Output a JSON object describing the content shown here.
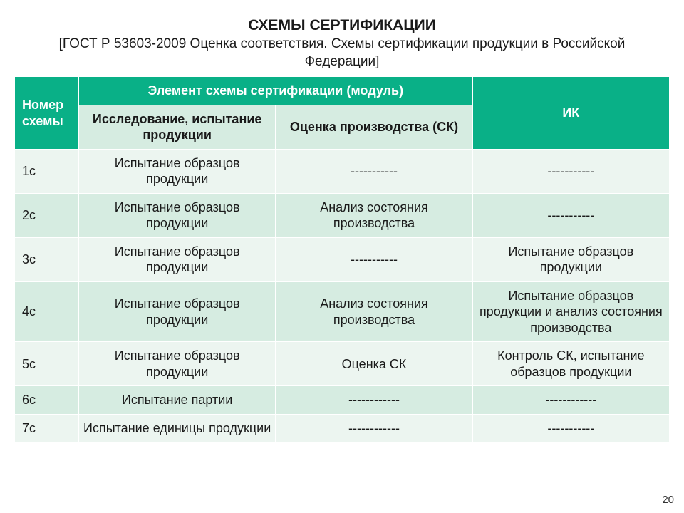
{
  "title": "СХЕМЫ СЕРТИФИКАЦИИ",
  "subtitle": "[ГОСТ Р 53603-2009 Оценка соответствия. Схемы сертификации продукции в Российской Федерации]",
  "page_number": "20",
  "colors": {
    "header_green": "#09b087",
    "header_light": "#d6ece1",
    "row_even": "#ecf5f0",
    "row_odd": "#d6ece1",
    "border": "#ffffff",
    "text": "#1a1a1a",
    "header_text": "#ffffff"
  },
  "columns": {
    "id": "Номер схемы",
    "module_group": "Элемент схемы сертификации (модуль)",
    "research": "Исследование, испытание продукции",
    "assessment": "Оценка производства (СК)",
    "ik": "ИК"
  },
  "col_widths": {
    "id": 90,
    "research": 210,
    "assessment": 210,
    "ik": 280
  },
  "rows": [
    {
      "id": "1с",
      "research": "Испытание образцов продукции",
      "assessment": "-----------",
      "ik": "-----------"
    },
    {
      "id": "2с",
      "research": "Испытание образцов продукции",
      "assessment": "Анализ состояния производства",
      "ik": "-----------"
    },
    {
      "id": "3с",
      "research": "Испытание образцов продукции",
      "assessment": "-----------",
      "ik": "Испытание образцов продукции"
    },
    {
      "id": "4с",
      "research": "Испытание образцов продукции",
      "assessment": "Анализ состояния производства",
      "ik": "Испытание образцов продукции и анализ состояния производства"
    },
    {
      "id": "5с",
      "research": "Испытание образцов продукции",
      "assessment": "Оценка СК",
      "ik": "Контроль СК, испытание образцов продукции"
    },
    {
      "id": "6с",
      "research": "Испытание партии",
      "assessment": "------------",
      "ik": "------------"
    },
    {
      "id": "7с",
      "research": "Испытание единицы продукции",
      "assessment": "------------",
      "ik": "-----------"
    }
  ]
}
